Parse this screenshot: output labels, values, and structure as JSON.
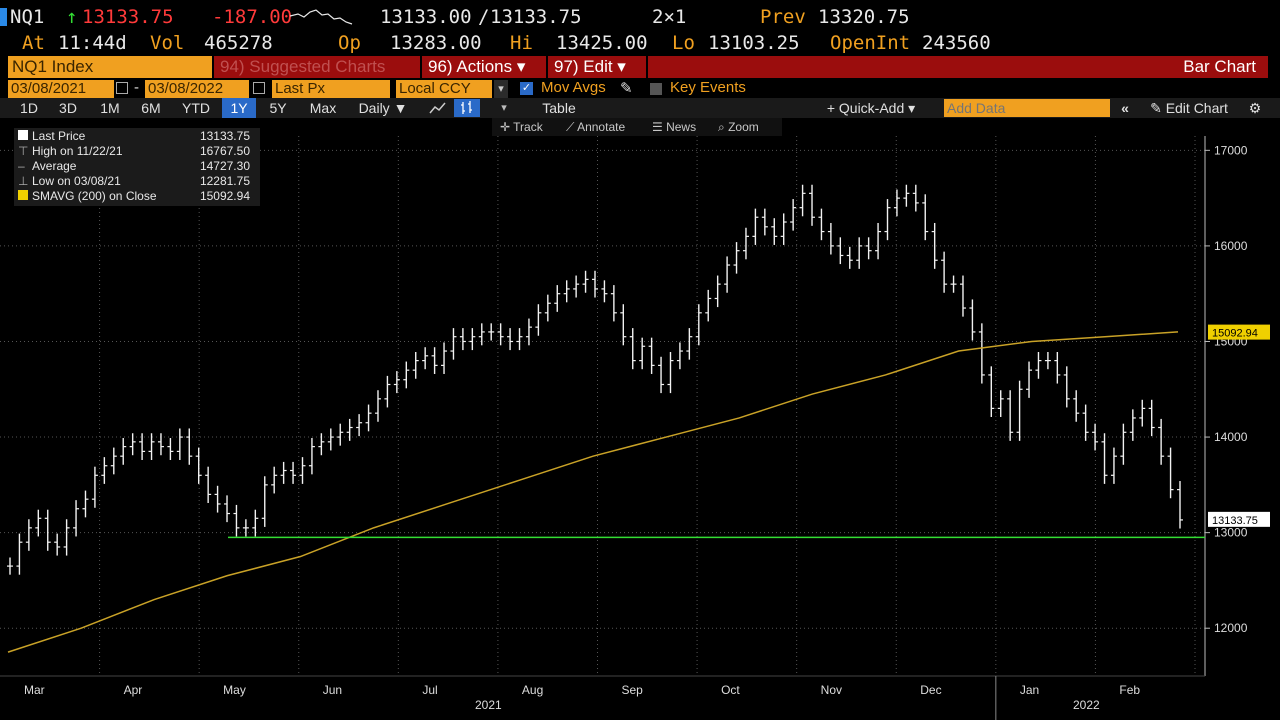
{
  "quote": {
    "ticker": "NQ1",
    "arrow": "↑",
    "last": "13133.75",
    "change": "-187.00",
    "bid": "13133.00",
    "sep": "/",
    "ask": "13133.75",
    "size": "2×1",
    "prev_label": "Prev",
    "prev": "13320.75",
    "at_label": "At",
    "at": "11:44d",
    "vol_label": "Vol",
    "vol": "465278",
    "op_label": "Op",
    "op": "13283.00",
    "hi_label": "Hi",
    "hi": "13425.00",
    "lo_label": "Lo",
    "lo": "13103.25",
    "oi_label": "OpenInt",
    "oi": "243560"
  },
  "function_bar": {
    "security": "NQ1 Index",
    "suggested": "94) Suggested Charts",
    "actions": "96) Actions ▾",
    "edit": "97) Edit ▾",
    "title": "Bar Chart"
  },
  "controls": {
    "start_date": "03/08/2021",
    "dash": "-",
    "end_date": "03/08/2022",
    "field": "Last Px",
    "currency": "Local CCY",
    "mov_avgs": "Mov Avgs",
    "key_events": "Key Events"
  },
  "periods": [
    "1D",
    "3D",
    "1M",
    "6M",
    "YTD",
    "1Y",
    "5Y",
    "Max"
  ],
  "selected_period": "1Y",
  "toolbar": {
    "frequency": "Daily ▼",
    "table": "Table",
    "quick_add": "+ Quick-Add ▾",
    "add_data_placeholder": "Add Data",
    "edit_chart": "Edit Chart"
  },
  "tools": [
    "Track",
    "Annotate",
    "News",
    "Zoom"
  ],
  "legend": [
    {
      "label": "Last Price",
      "value": "13133.75"
    },
    {
      "label": "High on 11/22/21",
      "value": "16767.50"
    },
    {
      "label": "Average",
      "value": "14727.30"
    },
    {
      "label": "Low on 03/08/21",
      "value": "12281.75"
    },
    {
      "label": "SMAVG (200)  on Close",
      "value": "15092.94"
    }
  ],
  "colors": {
    "accent_orange": "#f0a020",
    "function_red": "#9b0d0d",
    "sma_line": "#c9a227",
    "support_line": "#33dd33",
    "selected_blue": "#2a6ac8"
  },
  "chart_data": {
    "type": "bar",
    "x_labels": [
      "Mar",
      "Apr",
      "May",
      "Jun",
      "Jul",
      "Aug",
      "Sep",
      "Oct",
      "Nov",
      "Dec",
      "Jan",
      "Feb"
    ],
    "year_labels": [
      "2021",
      "2022"
    ],
    "y_ticks": [
      12000,
      13000,
      14000,
      15000,
      16000,
      17000
    ],
    "ylim": [
      11500,
      17150
    ],
    "series": [
      {
        "name": "Last Price",
        "values": [
          12650,
          12900,
          13050,
          13150,
          12900,
          12850,
          13050,
          13250,
          13350,
          13600,
          13700,
          13800,
          13900,
          13950,
          13850,
          13950,
          13900,
          13850,
          14000,
          13800,
          13600,
          13400,
          13300,
          13200,
          13050,
          13050,
          13150,
          13500,
          13600,
          13650,
          13600,
          13700,
          13900,
          13950,
          14000,
          14050,
          14100,
          14150,
          14250,
          14400,
          14550,
          14600,
          14700,
          14800,
          14850,
          14750,
          14900,
          15050,
          15000,
          15050,
          15100,
          15100,
          15050,
          15000,
          15050,
          15150,
          15300,
          15400,
          15500,
          15550,
          15600,
          15650,
          15550,
          15500,
          15300,
          15050,
          14800,
          14950,
          14750,
          14550,
          14800,
          14900,
          15050,
          15300,
          15450,
          15600,
          15800,
          15950,
          16100,
          16300,
          16200,
          16100,
          16250,
          16400,
          16550,
          16300,
          16150,
          16000,
          15900,
          15850,
          16000,
          15950,
          16150,
          16400,
          16500,
          16550,
          16450,
          16150,
          15850,
          15600,
          15600,
          15350,
          15100,
          14650,
          14300,
          14400,
          14050,
          14500,
          14700,
          14800,
          14800,
          14650,
          14400,
          14250,
          14050,
          13950,
          13600,
          13800,
          14050,
          14200,
          14300,
          14100,
          13800,
          13450,
          13133
        ]
      },
      {
        "name": "SMAVG (200) on Close",
        "values": [
          11750,
          12000,
          12300,
          12550,
          12750,
          13050,
          13300,
          13550,
          13800,
          14000,
          14200,
          14450,
          14650,
          14900,
          15000,
          15050,
          15100
        ]
      }
    ],
    "support_level": 12950,
    "last_price_label": "13133.75",
    "sma_label": "15092.94"
  }
}
